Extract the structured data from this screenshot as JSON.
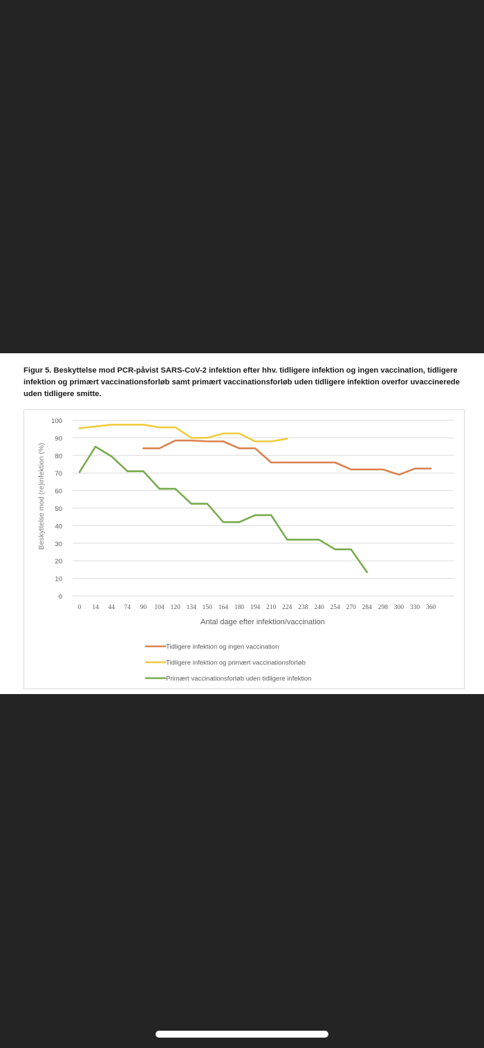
{
  "caption": "Figur 5. Beskyttelse mod PCR-påvist SARS-CoV-2 infektion efter hhv. tidligere infektion og ingen vaccination, tidligere infektion og primært vaccinationsforløb samt primært vaccinationsforløb uden tidligere infektion overfor uvaccinerede uden tidligere smitte.",
  "colors": {
    "background": "#242424",
    "grid": "#d9d9d9",
    "series_orange": "#d9824f",
    "series_yellow": "#efcc3c",
    "series_green": "#77ab4c"
  },
  "chart_data": {
    "type": "line",
    "xlabel": "Antal dage efter infektion/vaccination",
    "ylabel": "Beskyttelse mod (re)infektion (%)",
    "ylim": [
      0,
      100
    ],
    "yticks": [
      "0",
      "10",
      "20",
      "30",
      "40",
      "50",
      "60",
      "70",
      "80",
      "90",
      "100"
    ],
    "categories": [
      "0",
      "14",
      "44",
      "74",
      "90",
      "104",
      "120",
      "134",
      "150",
      "164",
      "180",
      "194",
      "210",
      "224",
      "238",
      "240",
      "254",
      "270",
      "284",
      "298",
      "300",
      "330",
      "360"
    ],
    "grid": "horizontal",
    "legend_position": "bottom",
    "series": [
      {
        "name": "Tidligere infektion og ingen vaccination",
        "color": "#d9824f",
        "values": [
          null,
          null,
          null,
          null,
          84,
          84,
          88.5,
          88.5,
          88,
          88,
          84,
          84,
          76,
          76,
          76,
          76,
          76,
          72,
          72,
          72,
          69,
          72.5,
          72.5
        ]
      },
      {
        "name": "Tidligere infektion og primært vaccinationsforløb",
        "color": "#efcc3c",
        "values": [
          95.5,
          96.5,
          97.5,
          97.5,
          97.5,
          96,
          96,
          90,
          90,
          92.5,
          92.5,
          88,
          88,
          89.5,
          null,
          null,
          null,
          null,
          null,
          null,
          null,
          null,
          null
        ]
      },
      {
        "name": "Primært vaccinationsforløb uden tidligere infektion",
        "color": "#77ab4c",
        "values": [
          70.5,
          85,
          79.5,
          71,
          71,
          61,
          61,
          52.5,
          52.5,
          42,
          42,
          46,
          46,
          32,
          32,
          32,
          26.5,
          26.5,
          13.5,
          null,
          null,
          null,
          null
        ]
      }
    ]
  }
}
